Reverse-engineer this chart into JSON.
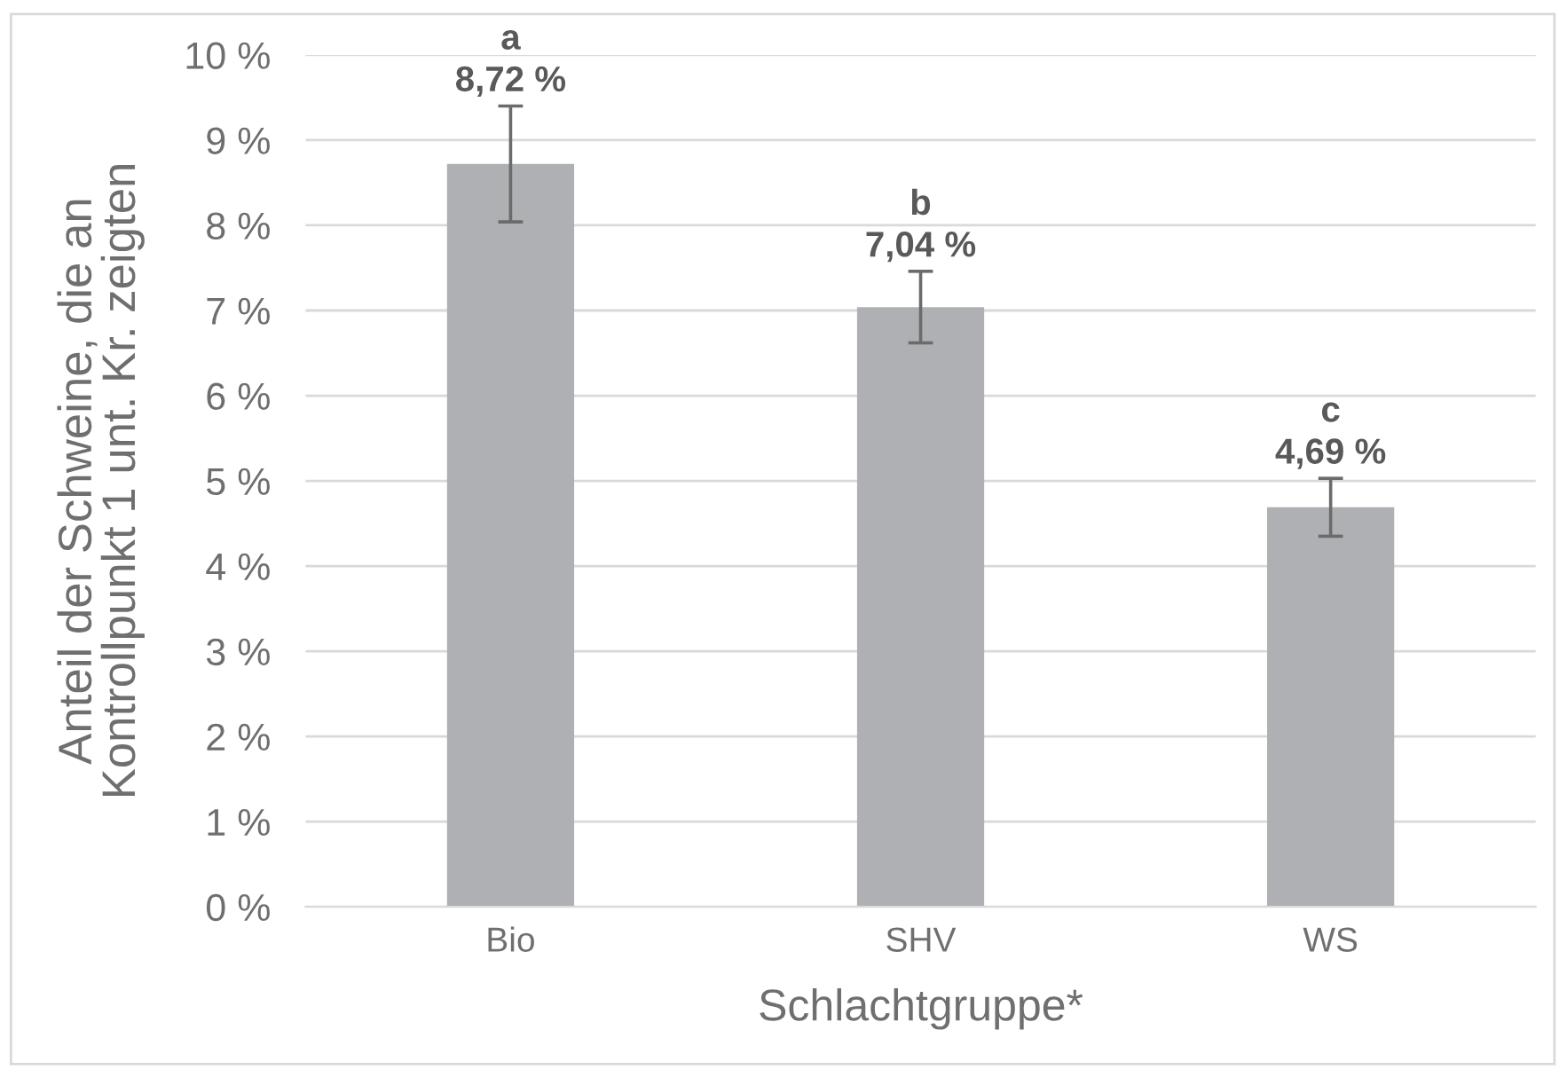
{
  "chart_data": {
    "type": "bar",
    "xlabel": "Schlachtgruppe*",
    "ylabel": "Anteil der Schweine, die an\nKontrollpunkt 1 unt. Kr. zeigten",
    "categories": [
      "Bio",
      "SHV",
      "WS"
    ],
    "values": [
      8.72,
      7.04,
      4.69
    ],
    "errors": [
      0.68,
      0.42,
      0.34
    ],
    "value_labels": [
      "8,72 %",
      "7,04 %",
      "4,69 %"
    ],
    "annotations": [
      "a",
      "b",
      "c"
    ],
    "color": "#afb0b3",
    "ylim": [
      0,
      10
    ],
    "yticks": [
      {
        "value": 0,
        "label": "0 %"
      },
      {
        "value": 1,
        "label": "1 %"
      },
      {
        "value": 2,
        "label": "2 %"
      },
      {
        "value": 3,
        "label": "3 %"
      },
      {
        "value": 4,
        "label": "4 %"
      },
      {
        "value": 5,
        "label": "5 %"
      },
      {
        "value": 6,
        "label": "6 %"
      },
      {
        "value": 7,
        "label": "7 %"
      },
      {
        "value": 8,
        "label": "8 %"
      },
      {
        "value": 9,
        "label": "9 %"
      },
      {
        "value": 10,
        "label": "10 %"
      }
    ],
    "grid": "y",
    "legend": false
  }
}
